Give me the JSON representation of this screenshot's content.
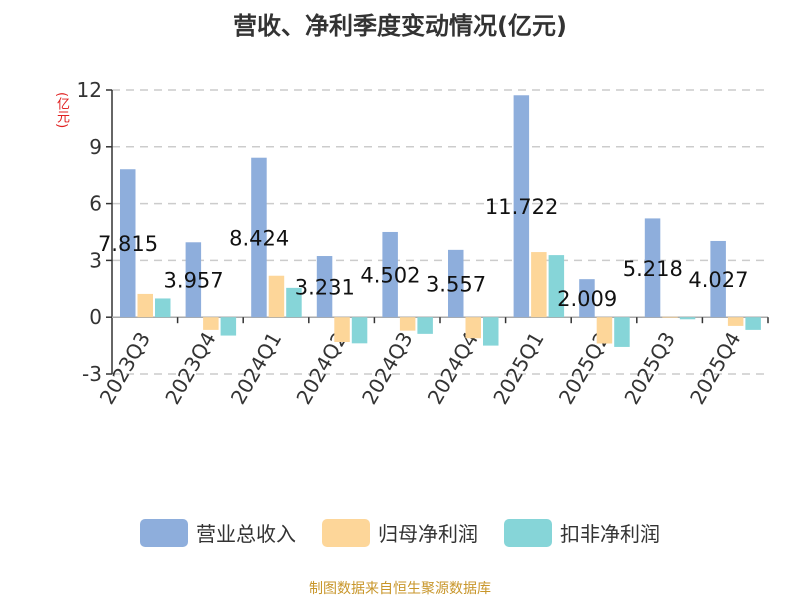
{
  "chart_data": {
    "type": "bar",
    "title": "营收、净利季度变动情况(亿元)",
    "ylabel": "(亿元)",
    "ylim": [
      -3,
      12
    ],
    "yticks": [
      -3,
      0,
      3,
      6,
      9,
      12
    ],
    "grid": true,
    "legend_position": "bottom",
    "categories": [
      "2023Q3",
      "2023Q4",
      "2024Q1",
      "2024Q2",
      "2024Q3",
      "2024Q4",
      "2025Q1",
      "2025Q2",
      "2025Q3",
      "2025Q4"
    ],
    "series": [
      {
        "name": "营业总收入",
        "color": "#8eaedc",
        "values": [
          7.815,
          3.957,
          8.424,
          3.231,
          4.502,
          3.557,
          11.722,
          2.009,
          5.218,
          4.027
        ],
        "labels": [
          "7.815",
          "3.957",
          "8.424",
          "3.231",
          "4.502",
          "3.557",
          "11.722",
          "2.009",
          "5.218",
          "4.027"
        ]
      },
      {
        "name": "归母净利润",
        "color": "#fdd699",
        "values": [
          1.23,
          -0.67,
          2.19,
          -1.31,
          -0.71,
          -1.11,
          3.44,
          -1.39,
          0.02,
          -0.46
        ]
      },
      {
        "name": "扣非净利润",
        "color": "#86d5d8",
        "values": [
          0.99,
          -0.97,
          1.55,
          -1.38,
          -0.88,
          -1.5,
          3.28,
          -1.57,
          -0.11,
          -0.67
        ]
      }
    ]
  },
  "source": "制图数据来自恒生聚源数据库"
}
